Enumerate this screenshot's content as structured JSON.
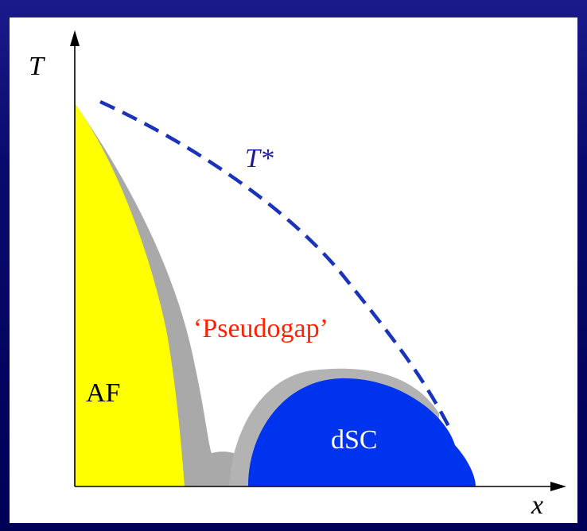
{
  "diagram": {
    "axis_x_label": "x",
    "axis_y_label": "T",
    "crossover_label": "T*",
    "pseudogap_label": "‘Pseudogap’",
    "af_label": "AF",
    "dsc_label": "dSC"
  },
  "colors": {
    "background_border": "#000066",
    "panel": "#ffffff",
    "af_region": "#ffff00",
    "fluctuation_region": "#a9a9a9",
    "dsc_region": "#0033ee",
    "crossover_line": "#1a33bb",
    "pseudogap_text": "#ff2200",
    "crossover_text": "#1a1a99"
  }
}
